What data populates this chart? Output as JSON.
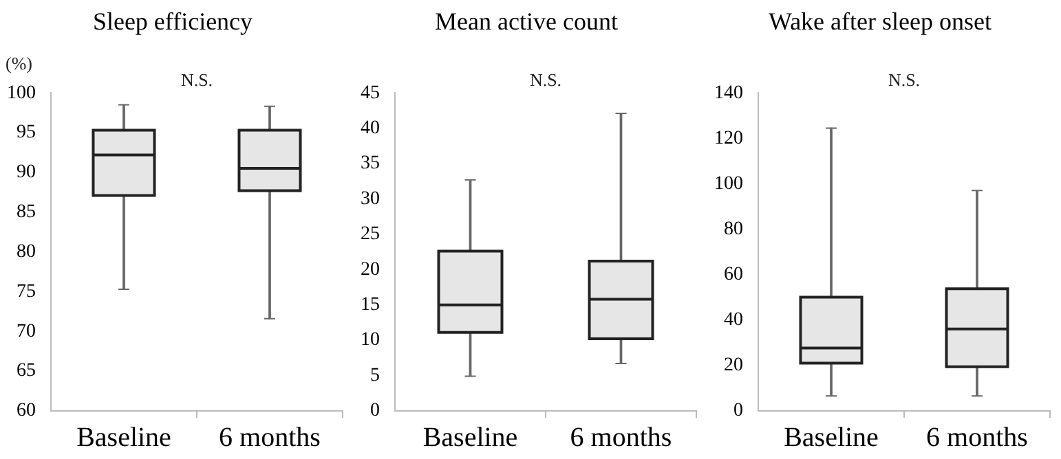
{
  "chart_data": [
    {
      "type": "box",
      "title": "Sleep efficiency",
      "ylabel": "(%)",
      "annotations": [
        "N.S."
      ],
      "categories": [
        "Baseline",
        "6 months"
      ],
      "ylim": [
        60,
        100
      ],
      "yticks": [
        60,
        65,
        70,
        75,
        80,
        85,
        90,
        95,
        100
      ],
      "series": [
        {
          "color": "#e6e6e6",
          "boxes": [
            {
              "low": 75.3,
              "q1": 87.1,
              "median": 92.2,
              "q3": 95.3,
              "high": 98.5
            },
            {
              "low": 71.6,
              "q1": 87.7,
              "median": 90.5,
              "q3": 95.3,
              "high": 98.3
            }
          ]
        }
      ]
    },
    {
      "type": "box",
      "title": "Mean active count",
      "annotations": [
        "N.S."
      ],
      "categories": [
        "Baseline",
        "6 months"
      ],
      "ylim": [
        0,
        45
      ],
      "yticks": [
        0,
        5,
        10,
        15,
        20,
        25,
        30,
        35,
        40,
        45
      ],
      "series": [
        {
          "color": "#e6e6e6",
          "boxes": [
            {
              "low": 4.9,
              "q1": 11.1,
              "median": 15.0,
              "q3": 22.6,
              "high": 32.7
            },
            {
              "low": 6.7,
              "q1": 10.2,
              "median": 15.8,
              "q3": 21.2,
              "high": 42.1
            }
          ]
        }
      ]
    },
    {
      "type": "box",
      "title": "Wake after sleep onset",
      "annotations": [
        "N.S."
      ],
      "categories": [
        "Baseline",
        "6 months"
      ],
      "ylim": [
        0,
        140
      ],
      "yticks": [
        0,
        20,
        40,
        60,
        80,
        100,
        120,
        140
      ],
      "series": [
        {
          "color": "#e6e6e6",
          "boxes": [
            {
              "low": 6.6,
              "q1": 21.0,
              "median": 27.7,
              "q3": 50.1,
              "high": 124.5
            },
            {
              "low": 6.6,
              "q1": 19.4,
              "median": 36.1,
              "q3": 53.8,
              "high": 97.0
            }
          ]
        }
      ]
    }
  ]
}
